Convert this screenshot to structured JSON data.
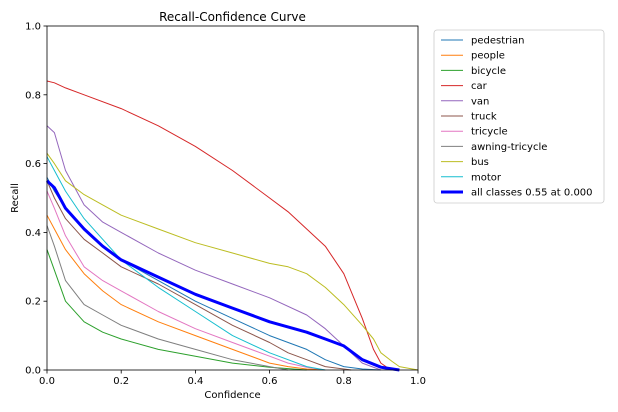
{
  "chart_data": {
    "type": "line",
    "title": "Recall-Confidence Curve",
    "xlabel": "Confidence",
    "ylabel": "Recall",
    "xlim": [
      0,
      1
    ],
    "ylim": [
      0,
      1
    ],
    "xticks": [
      "0.0",
      "0.2",
      "0.4",
      "0.6",
      "0.8",
      "1.0"
    ],
    "yticks": [
      "0.0",
      "0.2",
      "0.4",
      "0.6",
      "0.8",
      "1.0"
    ],
    "grid": false,
    "legend_position": "outside-right",
    "series": [
      {
        "name": "pedestrian",
        "color": "#1f77b4",
        "x": [
          0,
          0.02,
          0.05,
          0.1,
          0.15,
          0.2,
          0.3,
          0.4,
          0.5,
          0.6,
          0.7,
          0.75,
          0.8,
          0.85,
          0.9
        ],
        "y": [
          0.56,
          0.52,
          0.47,
          0.41,
          0.36,
          0.32,
          0.26,
          0.2,
          0.15,
          0.1,
          0.06,
          0.03,
          0.01,
          0.003,
          0
        ]
      },
      {
        "name": "people",
        "color": "#ff7f0e",
        "x": [
          0,
          0.02,
          0.05,
          0.1,
          0.15,
          0.2,
          0.3,
          0.4,
          0.5,
          0.6,
          0.65,
          0.7,
          0.75
        ],
        "y": [
          0.45,
          0.41,
          0.35,
          0.28,
          0.23,
          0.19,
          0.14,
          0.1,
          0.06,
          0.02,
          0.01,
          0.003,
          0
        ]
      },
      {
        "name": "bicycle",
        "color": "#2ca02c",
        "x": [
          0,
          0.02,
          0.05,
          0.1,
          0.15,
          0.2,
          0.3,
          0.4,
          0.5,
          0.6,
          0.7
        ],
        "y": [
          0.35,
          0.29,
          0.2,
          0.14,
          0.11,
          0.09,
          0.06,
          0.04,
          0.02,
          0.008,
          0
        ]
      },
      {
        "name": "car",
        "color": "#d62728",
        "x": [
          0,
          0.02,
          0.05,
          0.1,
          0.2,
          0.3,
          0.4,
          0.5,
          0.6,
          0.65,
          0.7,
          0.75,
          0.8,
          0.85,
          0.88,
          0.9,
          0.92,
          0.95
        ],
        "y": [
          0.84,
          0.835,
          0.82,
          0.8,
          0.76,
          0.71,
          0.65,
          0.58,
          0.5,
          0.46,
          0.41,
          0.36,
          0.28,
          0.15,
          0.06,
          0.02,
          0.005,
          0
        ]
      },
      {
        "name": "van",
        "color": "#9467bd",
        "x": [
          0,
          0.02,
          0.05,
          0.1,
          0.15,
          0.2,
          0.3,
          0.4,
          0.5,
          0.6,
          0.7,
          0.75,
          0.8,
          0.85,
          0.9
        ],
        "y": [
          0.71,
          0.69,
          0.58,
          0.48,
          0.43,
          0.4,
          0.34,
          0.29,
          0.25,
          0.21,
          0.16,
          0.12,
          0.07,
          0.02,
          0
        ]
      },
      {
        "name": "truck",
        "color": "#8c564b",
        "x": [
          0,
          0.02,
          0.05,
          0.1,
          0.15,
          0.2,
          0.3,
          0.4,
          0.5,
          0.6,
          0.65,
          0.7,
          0.75,
          0.8,
          0.82
        ],
        "y": [
          0.55,
          0.5,
          0.44,
          0.38,
          0.34,
          0.3,
          0.25,
          0.19,
          0.13,
          0.08,
          0.05,
          0.03,
          0.01,
          0.003,
          0
        ]
      },
      {
        "name": "tricycle",
        "color": "#e377c2",
        "x": [
          0,
          0.02,
          0.05,
          0.1,
          0.15,
          0.2,
          0.3,
          0.4,
          0.5,
          0.6,
          0.65,
          0.7,
          0.75
        ],
        "y": [
          0.52,
          0.47,
          0.39,
          0.3,
          0.26,
          0.23,
          0.17,
          0.12,
          0.08,
          0.04,
          0.02,
          0.008,
          0
        ]
      },
      {
        "name": "awning-tricycle",
        "color": "#7f7f7f",
        "x": [
          0,
          0.02,
          0.05,
          0.1,
          0.15,
          0.2,
          0.3,
          0.4,
          0.5,
          0.6,
          0.65
        ],
        "y": [
          0.42,
          0.36,
          0.26,
          0.19,
          0.16,
          0.13,
          0.09,
          0.06,
          0.03,
          0.01,
          0
        ]
      },
      {
        "name": "bus",
        "color": "#bcbd22",
        "x": [
          0,
          0.02,
          0.05,
          0.1,
          0.15,
          0.2,
          0.3,
          0.4,
          0.5,
          0.6,
          0.65,
          0.7,
          0.75,
          0.8,
          0.85,
          0.88,
          0.9,
          0.93,
          0.95,
          1.0
        ],
        "y": [
          0.63,
          0.6,
          0.55,
          0.51,
          0.48,
          0.45,
          0.41,
          0.37,
          0.34,
          0.31,
          0.3,
          0.28,
          0.24,
          0.19,
          0.13,
          0.09,
          0.05,
          0.025,
          0.01,
          0
        ]
      },
      {
        "name": "motor",
        "color": "#17becf",
        "x": [
          0,
          0.02,
          0.05,
          0.1,
          0.15,
          0.2,
          0.3,
          0.4,
          0.5,
          0.6,
          0.7,
          0.75
        ],
        "y": [
          0.62,
          0.58,
          0.52,
          0.44,
          0.38,
          0.32,
          0.24,
          0.17,
          0.1,
          0.05,
          0.01,
          0
        ]
      },
      {
        "name": "all classes 0.55 at 0.000",
        "color": "#0000ff",
        "bold": true,
        "x": [
          0,
          0.02,
          0.05,
          0.1,
          0.15,
          0.2,
          0.3,
          0.4,
          0.5,
          0.6,
          0.7,
          0.75,
          0.8,
          0.85,
          0.9,
          0.95
        ],
        "y": [
          0.55,
          0.53,
          0.47,
          0.41,
          0.36,
          0.32,
          0.27,
          0.22,
          0.18,
          0.14,
          0.11,
          0.09,
          0.07,
          0.03,
          0.008,
          0
        ]
      }
    ]
  }
}
